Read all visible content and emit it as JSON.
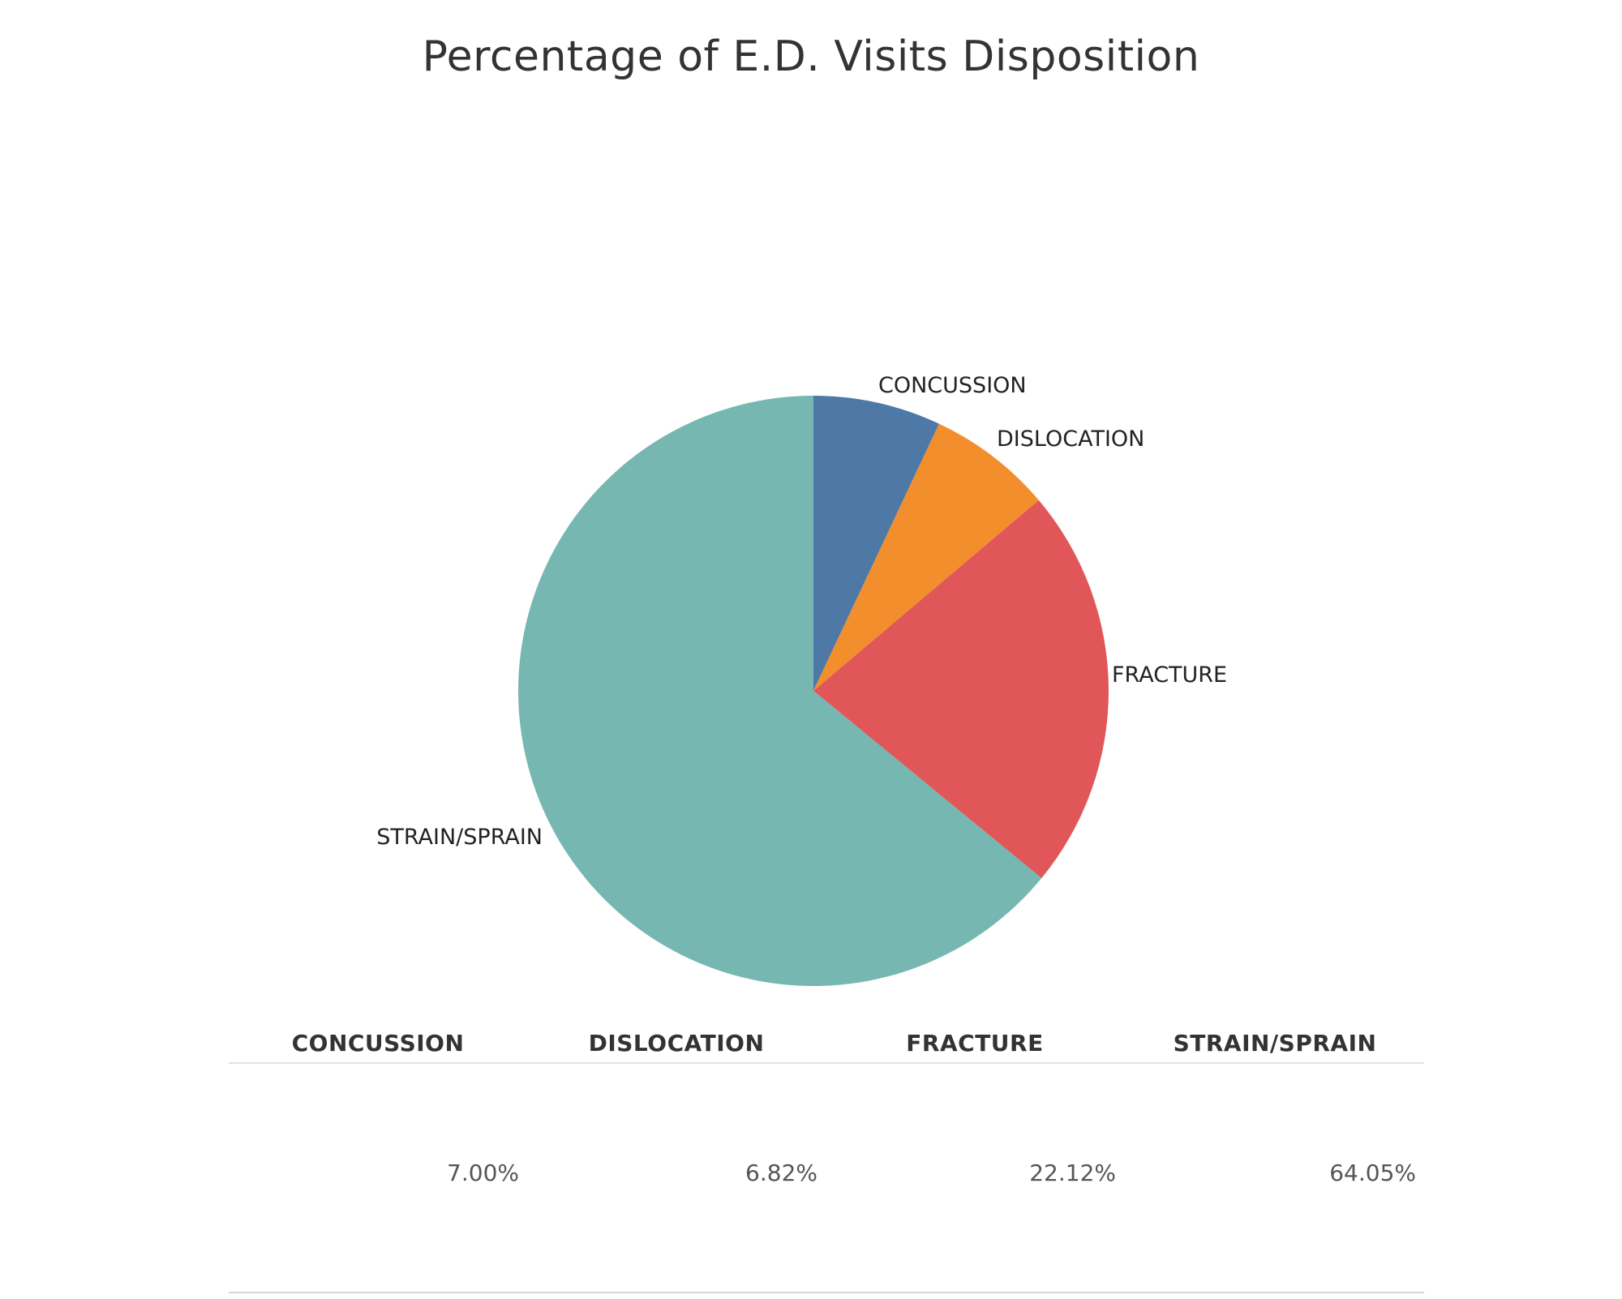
{
  "chart_data": {
    "type": "pie",
    "title": "Percentage of E.D. Visits Disposition",
    "slices": [
      {
        "label": "CONCUSSION",
        "value": 7.0,
        "display": "7.00%",
        "color": "#4e79a7"
      },
      {
        "label": "DISLOCATION",
        "value": 6.82,
        "display": "6.82%",
        "color": "#f28e2b"
      },
      {
        "label": "FRACTURE",
        "value": 22.12,
        "display": "22.12%",
        "color": "#e15759"
      },
      {
        "label": "STRAIN/SPRAIN",
        "value": 64.05,
        "display": "64.05%",
        "color": "#76b7b2"
      }
    ],
    "start": "12 o'clock",
    "direction": "clockwise",
    "unit": "%"
  },
  "table": {
    "headers": [
      "CONCUSSION",
      "DISLOCATION",
      "FRACTURE",
      "STRAIN/SPRAIN"
    ],
    "values": [
      "7.00%",
      "6.82%",
      "22.12%",
      "64.05%"
    ]
  }
}
